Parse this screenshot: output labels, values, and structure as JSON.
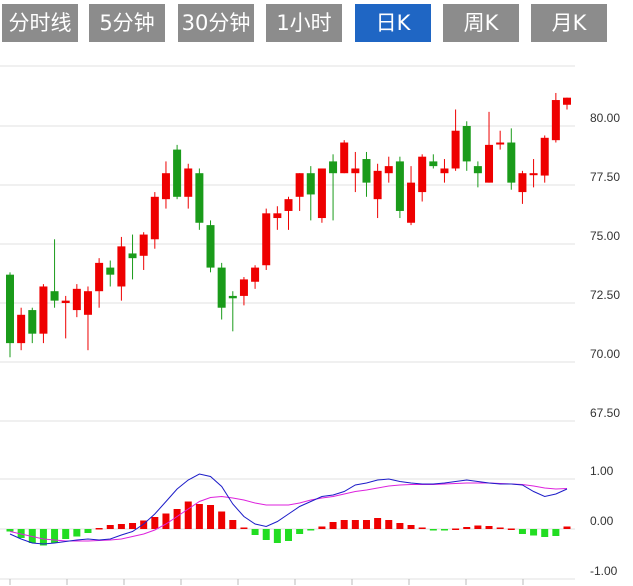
{
  "tabs": [
    {
      "label": "分时线",
      "active": false
    },
    {
      "label": "5分钟",
      "active": false
    },
    {
      "label": "30分钟",
      "active": false
    },
    {
      "label": "1小时",
      "active": false
    },
    {
      "label": "日K",
      "active": true
    },
    {
      "label": "周K",
      "active": false
    },
    {
      "label": "月K",
      "active": false
    }
  ],
  "colors": {
    "up": "#ee0000",
    "down": "#1a9b1a",
    "grid": "#e0e0e0",
    "dif": "#1c1cc8",
    "dea": "#dd22dd",
    "tab_active": "#1f66c4",
    "tab_inactive": "#8c8c8c"
  },
  "chart_data": [
    {
      "type": "candlestick",
      "yticks": [
        "80.00",
        "77.50",
        "75.00",
        "72.50",
        "70.00",
        "67.50"
      ],
      "ylim": [
        67.5,
        82.5
      ],
      "grid": true,
      "candles": [
        [
          73.7,
          70.8,
          70.2,
          73.8
        ],
        [
          70.8,
          72.0,
          70.5,
          72.3
        ],
        [
          72.2,
          71.2,
          70.8,
          72.3
        ],
        [
          71.2,
          73.2,
          70.8,
          73.3
        ],
        [
          73.0,
          72.6,
          72.3,
          75.2
        ],
        [
          72.5,
          72.6,
          71.0,
          72.8
        ],
        [
          72.2,
          73.1,
          71.9,
          73.3
        ],
        [
          72.0,
          73.0,
          70.5,
          73.2
        ],
        [
          73.0,
          74.2,
          72.3,
          74.4
        ],
        [
          74.0,
          73.7,
          73.2,
          74.3
        ],
        [
          73.2,
          74.9,
          72.6,
          75.3
        ],
        [
          74.6,
          74.4,
          73.5,
          75.4
        ],
        [
          74.5,
          75.4,
          73.9,
          75.5
        ],
        [
          75.2,
          77.0,
          74.8,
          77.2
        ],
        [
          76.9,
          78.0,
          76.5,
          78.5
        ],
        [
          79.0,
          77.0,
          76.9,
          79.2
        ],
        [
          77.0,
          78.2,
          76.5,
          78.4
        ],
        [
          78.0,
          75.9,
          75.6,
          78.2
        ],
        [
          75.8,
          74.0,
          73.8,
          76.0
        ],
        [
          74.0,
          72.3,
          71.8,
          74.2
        ],
        [
          72.8,
          72.7,
          71.3,
          73.0
        ],
        [
          72.8,
          73.5,
          72.4,
          73.6
        ],
        [
          73.4,
          74.0,
          73.1,
          74.1
        ],
        [
          74.1,
          76.3,
          73.9,
          76.5
        ],
        [
          76.1,
          76.3,
          75.6,
          76.6
        ],
        [
          76.4,
          76.9,
          75.6,
          77.0
        ],
        [
          77.0,
          78.0,
          76.4,
          78.0
        ],
        [
          78.0,
          77.1,
          76.0,
          78.3
        ],
        [
          76.1,
          78.2,
          75.9,
          78.2
        ],
        [
          78.5,
          78.0,
          76.0,
          78.8
        ],
        [
          78.0,
          79.3,
          78.0,
          79.4
        ],
        [
          78.0,
          78.2,
          77.2,
          78.9
        ],
        [
          78.6,
          77.6,
          77.0,
          78.9
        ],
        [
          76.9,
          78.1,
          76.1,
          78.4
        ],
        [
          78.0,
          78.3,
          77.6,
          78.7
        ],
        [
          78.5,
          76.4,
          76.1,
          78.7
        ],
        [
          75.9,
          77.6,
          75.8,
          78.3
        ],
        [
          77.2,
          78.7,
          76.8,
          78.8
        ],
        [
          78.5,
          78.3,
          78.2,
          78.8
        ],
        [
          78.0,
          78.2,
          77.6,
          78.6
        ],
        [
          78.2,
          79.8,
          78.1,
          80.7
        ],
        [
          80.0,
          78.5,
          78.1,
          80.2
        ],
        [
          78.3,
          78.0,
          77.4,
          78.5
        ],
        [
          77.6,
          79.2,
          77.6,
          80.6
        ],
        [
          79.3,
          79.3,
          79.0,
          79.8
        ],
        [
          79.3,
          77.6,
          77.3,
          79.9
        ],
        [
          77.2,
          78.0,
          76.7,
          78.1
        ],
        [
          78.0,
          78.0,
          77.4,
          78.6
        ],
        [
          77.9,
          79.5,
          77.6,
          79.6
        ],
        [
          79.4,
          81.1,
          79.3,
          81.4
        ],
        [
          80.9,
          81.2,
          80.7,
          81.2
        ]
      ],
      "macd_yticks": [
        "1.00",
        "0.00",
        "-1.00"
      ],
      "macd_ylim": [
        -1.0,
        1.0
      ],
      "macd_hist": [
        -0.05,
        -0.18,
        -0.28,
        -0.33,
        -0.28,
        -0.2,
        -0.15,
        -0.08,
        0.02,
        0.08,
        0.1,
        0.12,
        0.17,
        0.24,
        0.31,
        0.4,
        0.55,
        0.5,
        0.48,
        0.35,
        0.18,
        0.03,
        -0.12,
        -0.22,
        -0.28,
        -0.24,
        -0.1,
        -0.03,
        0.05,
        0.14,
        0.18,
        0.18,
        0.18,
        0.22,
        0.18,
        0.12,
        0.08,
        0.03,
        -0.02,
        -0.01,
        0.01,
        0.04,
        0.07,
        0.06,
        0.03,
        0.01,
        -0.1,
        -0.13,
        -0.16,
        -0.14,
        0.05
      ],
      "macd_dif": [
        -0.1,
        -0.2,
        -0.28,
        -0.3,
        -0.28,
        -0.25,
        -0.22,
        -0.2,
        -0.22,
        -0.2,
        -0.12,
        -0.05,
        0.1,
        0.3,
        0.55,
        0.8,
        0.98,
        1.1,
        1.05,
        0.85,
        0.5,
        0.25,
        0.1,
        0.05,
        0.15,
        0.3,
        0.45,
        0.55,
        0.65,
        0.68,
        0.75,
        0.88,
        0.92,
        0.98,
        1.0,
        0.95,
        0.92,
        0.9,
        0.9,
        0.92,
        0.95,
        0.98,
        0.95,
        0.92,
        0.9,
        0.9,
        0.88,
        0.75,
        0.65,
        0.7,
        0.8
      ],
      "macd_dea": [
        -0.05,
        -0.1,
        -0.15,
        -0.2,
        -0.22,
        -0.24,
        -0.24,
        -0.24,
        -0.23,
        -0.22,
        -0.2,
        -0.15,
        -0.1,
        -0.02,
        0.1,
        0.25,
        0.4,
        0.55,
        0.63,
        0.65,
        0.62,
        0.58,
        0.52,
        0.48,
        0.48,
        0.48,
        0.52,
        0.58,
        0.62,
        0.65,
        0.7,
        0.75,
        0.78,
        0.82,
        0.86,
        0.88,
        0.89,
        0.89,
        0.89,
        0.9,
        0.91,
        0.92,
        0.92,
        0.92,
        0.91,
        0.9,
        0.89,
        0.86,
        0.82,
        0.8,
        0.81
      ]
    }
  ]
}
